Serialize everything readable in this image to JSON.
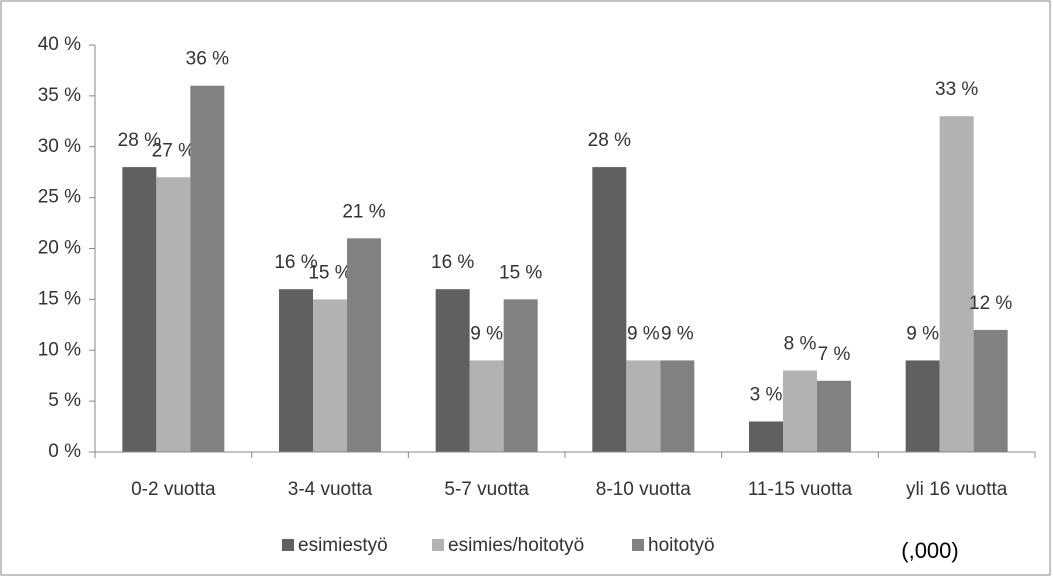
{
  "chart_data": {
    "type": "bar",
    "categories": [
      "0-2 vuotta",
      "3-4 vuotta",
      "5-7 vuotta",
      "8-10 vuotta",
      "11-15 vuotta",
      "yli 16 vuotta"
    ],
    "series": [
      {
        "name": "esimiestyö",
        "color": "#606060",
        "values": [
          28,
          16,
          16,
          28,
          3,
          9
        ],
        "value_labels": [
          "28 %",
          "16 %",
          "16 %",
          "28 %",
          "3 %",
          "9 %"
        ]
      },
      {
        "name": "esimies/hoitotyö",
        "color": "#b2b2b2",
        "values": [
          27,
          15,
          9,
          9,
          8,
          33
        ],
        "value_labels": [
          "27 %",
          "15 %",
          "9 %",
          "9 %",
          "8 %",
          "33 %"
        ]
      },
      {
        "name": "hoitotyö",
        "color": "#818181",
        "values": [
          36,
          21,
          15,
          9,
          7,
          12
        ],
        "value_labels": [
          "36 %",
          "21 %",
          "15 %",
          "9 %",
          "7 %",
          "12 %"
        ]
      }
    ],
    "ylim": [
      0,
      40
    ],
    "yticks": [
      {
        "value": 0,
        "label": "0 %"
      },
      {
        "value": 5,
        "label": "5 %"
      },
      {
        "value": 10,
        "label": "10 %"
      },
      {
        "value": 15,
        "label": "15 %"
      },
      {
        "value": 20,
        "label": "20 %"
      },
      {
        "value": 25,
        "label": "25 %"
      },
      {
        "value": 30,
        "label": "30 %"
      },
      {
        "value": 35,
        "label": "35 %"
      },
      {
        "value": 40,
        "label": "40 %"
      }
    ],
    "legend": "bottom",
    "annotation": "(,000)"
  }
}
